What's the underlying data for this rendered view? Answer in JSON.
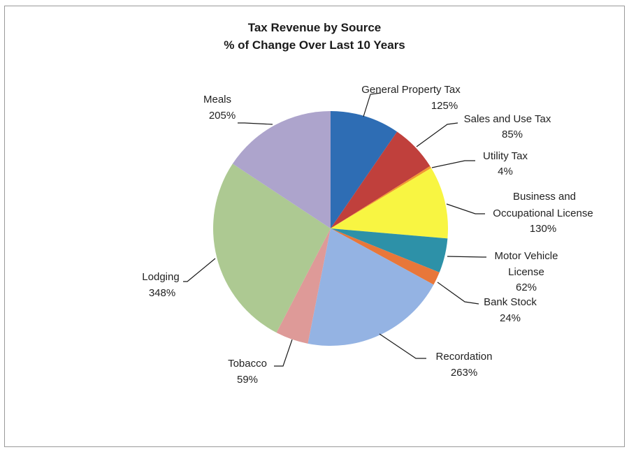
{
  "chart_data": {
    "type": "pie",
    "title": "Tax Revenue by Source",
    "subtitle": "% of Change Over Last 10 Years",
    "legend": "none",
    "slices": [
      {
        "label": "General Property Tax",
        "value_label": "125%",
        "value": 125,
        "color": "#2e6db4"
      },
      {
        "label": "Sales and Use Tax",
        "value_label": "85%",
        "value": 85,
        "color": "#c0403c"
      },
      {
        "label": "Utility Tax",
        "value_label": "4%",
        "value": 4,
        "color": "#f29a2e"
      },
      {
        "label": "Business and Occupational License",
        "value_label": "130%",
        "value": 130,
        "color": "#f8f542"
      },
      {
        "label": "Motor Vehicle License",
        "value_label": "62%",
        "value": 62,
        "color": "#2d91a8"
      },
      {
        "label": "Bank Stock",
        "value_label": "24%",
        "value": 24,
        "color": "#e8773a"
      },
      {
        "label": "Recordation",
        "value_label": "263%",
        "value": 263,
        "color": "#94b3e3"
      },
      {
        "label": "Tobacco",
        "value_label": "59%",
        "value": 59,
        "color": "#de9a98"
      },
      {
        "label": "Lodging",
        "value_label": "348%",
        "value": 348,
        "color": "#adc992"
      },
      {
        "label": "Meals",
        "value_label": "205%",
        "value": 205,
        "color": "#ada4cc"
      }
    ]
  }
}
